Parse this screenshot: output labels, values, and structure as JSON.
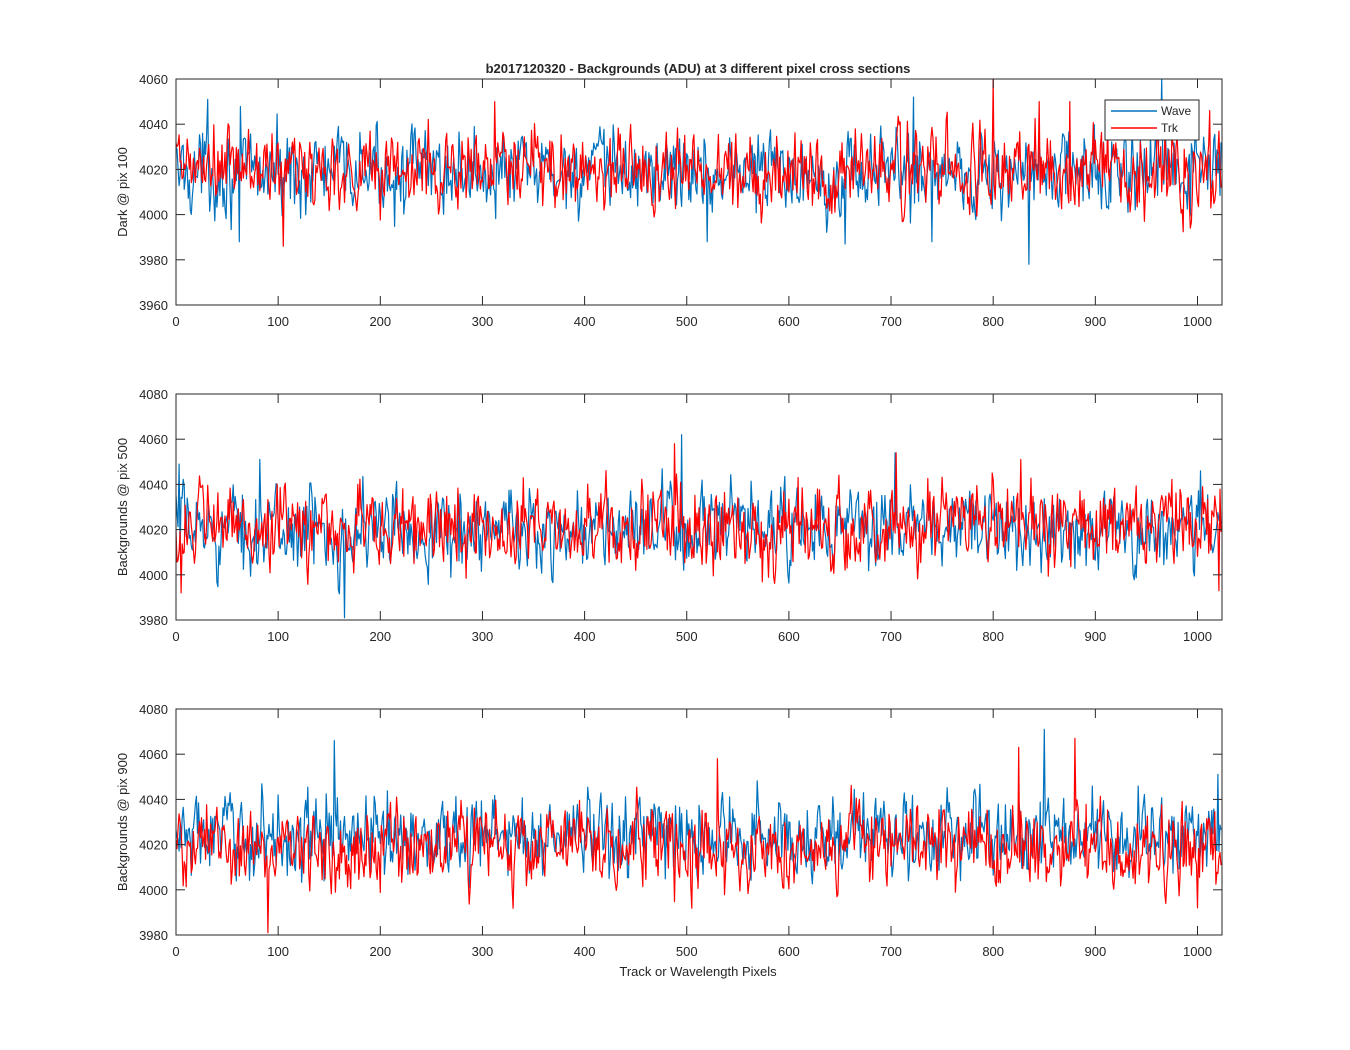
{
  "chart_data": {
    "type": "line",
    "title": "b2017120320 - Backgrounds (ADU) at 3 different pixel cross sections",
    "xlabel": "Track or Wavelength Pixels",
    "legend": {
      "placement": "top-right",
      "entries": [
        {
          "name": "Wave",
          "color": "#0072BD"
        },
        {
          "name": "Trk",
          "color": "#FF0000"
        }
      ]
    },
    "xlim": [
      0,
      1024
    ],
    "xticks": [
      0,
      100,
      200,
      300,
      400,
      500,
      600,
      700,
      800,
      900,
      1000
    ],
    "num_points": 1024,
    "panels": [
      {
        "ylabel": "Dark @ pix 100",
        "ylim": [
          3960,
          4060
        ],
        "yticks": [
          3960,
          3980,
          4000,
          4020,
          4040,
          4060
        ],
        "series": [
          {
            "name": "Wave",
            "color": "#0072BD",
            "mean": 4019,
            "std": 10,
            "min": 3978,
            "max": 4060,
            "spikes": [
              [
                31,
                4051
              ],
              [
                62,
                3988
              ],
              [
                520,
                3988
              ],
              [
                655,
                3987
              ],
              [
                722,
                4052
              ],
              [
                740,
                3988
              ],
              [
                835,
                3978
              ],
              [
                965,
                4060
              ]
            ]
          },
          {
            "name": "Trk",
            "color": "#FF0000",
            "mean": 4020,
            "std": 10,
            "min": 3986,
            "max": 4060,
            "spikes": [
              [
                105,
                3986
              ],
              [
                312,
                4050
              ],
              [
                800,
                4060
              ],
              [
                845,
                4050
              ],
              [
                875,
                4050
              ],
              [
                1012,
                4046
              ]
            ]
          }
        ]
      },
      {
        "ylabel": "Backgrounds @ pix 500",
        "ylim": [
          3980,
          4080
        ],
        "yticks": [
          3980,
          4000,
          4020,
          4040,
          4060,
          4080
        ],
        "series": [
          {
            "name": "Wave",
            "color": "#0072BD",
            "mean": 4020,
            "std": 10,
            "min": 3981,
            "max": 4062,
            "spikes": [
              [
                3,
                4049
              ],
              [
                82,
                4051
              ],
              [
                165,
                3981
              ],
              [
                495,
                4062
              ],
              [
                704,
                4054
              ],
              [
                1003,
                4046
              ]
            ]
          },
          {
            "name": "Trk",
            "color": "#FF0000",
            "mean": 4021,
            "std": 10,
            "min": 3992,
            "max": 4058,
            "spikes": [
              [
                5,
                3992
              ],
              [
                488,
                4058
              ],
              [
                705,
                4054
              ],
              [
                827,
                4051
              ],
              [
                1021,
                3993
              ]
            ]
          }
        ]
      },
      {
        "ylabel": "Backgrounds @ pix 900",
        "ylim": [
          3980,
          4080
        ],
        "yticks": [
          3980,
          4000,
          4020,
          4040,
          4060,
          4080
        ],
        "series": [
          {
            "name": "Wave",
            "color": "#0072BD",
            "mean": 4024,
            "std": 10,
            "min": 3995,
            "max": 4071,
            "spikes": [
              [
                155,
                4066
              ],
              [
                850,
                4071
              ],
              [
                1020,
                4051
              ]
            ]
          },
          {
            "name": "Trk",
            "color": "#FF0000",
            "mean": 4019,
            "std": 10,
            "min": 3981,
            "max": 4067,
            "spikes": [
              [
                90,
                3981
              ],
              [
                530,
                4058
              ],
              [
                825,
                4063
              ],
              [
                880,
                4067
              ],
              [
                1000,
                3992
              ]
            ]
          }
        ]
      }
    ]
  }
}
